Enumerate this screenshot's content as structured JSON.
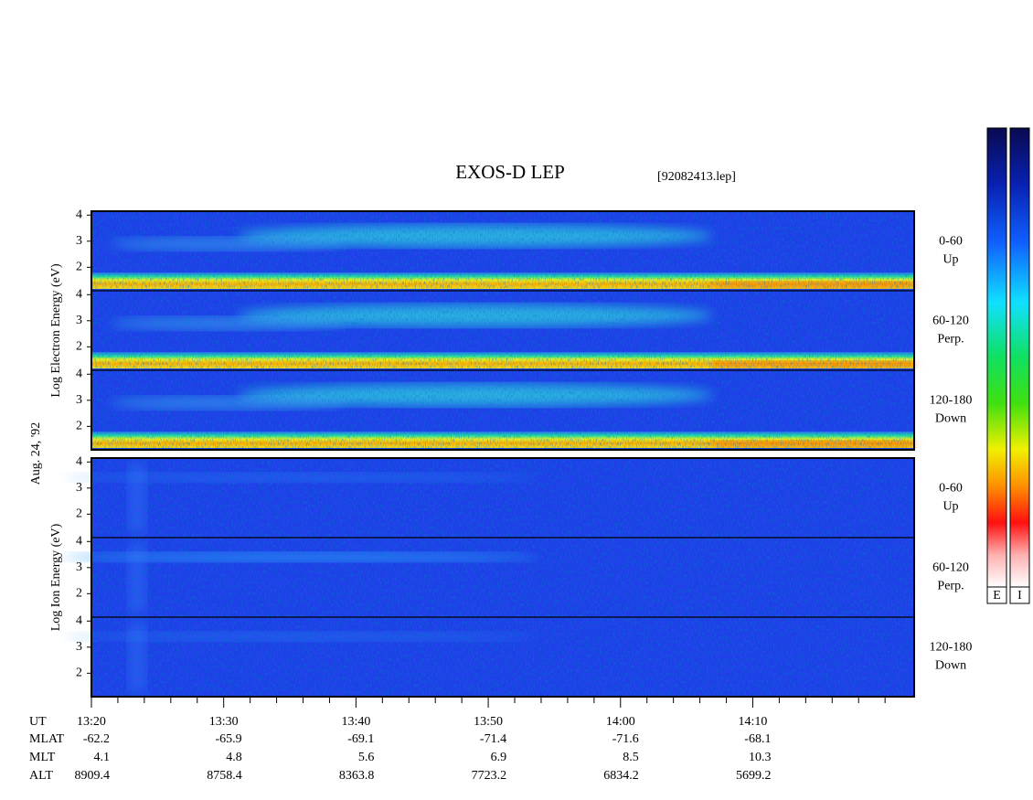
{
  "title": "EXOS-D LEP",
  "file": "[92082413.lep]",
  "date": "Aug. 24, '92",
  "groups": [
    {
      "label": "Log Electron Energy (eV)",
      "kind": "electron"
    },
    {
      "label": "Log Ion Energy (eV)",
      "kind": "ion"
    }
  ],
  "pitch_angles": [
    {
      "range": "0-60",
      "dir": "Up"
    },
    {
      "range": "60-120",
      "dir": "Perp."
    },
    {
      "range": "120-180",
      "dir": "Down"
    }
  ],
  "energy_axis": {
    "ylim": [
      1.1,
      4.15
    ],
    "yticks": [
      2,
      3,
      4
    ]
  },
  "time_axis": {
    "name": "UT",
    "xlim": [
      800,
      862.2
    ],
    "xticks": [
      {
        "value": 800,
        "label": "13:20"
      },
      {
        "value": 810,
        "label": "13:30"
      },
      {
        "value": 820,
        "label": "13:40"
      },
      {
        "value": 830,
        "label": "13:50"
      },
      {
        "value": 840,
        "label": "14:00"
      },
      {
        "value": 850,
        "label": "14:10"
      }
    ],
    "minor_xticks": [
      802,
      804,
      806,
      808,
      812,
      814,
      816,
      818,
      822,
      824,
      826,
      828,
      832,
      834,
      836,
      838,
      842,
      844,
      846,
      848,
      852,
      854,
      856,
      858,
      860
    ]
  },
  "ephemeris": [
    {
      "name": "MLAT",
      "values": [
        -62.2,
        -65.9,
        -69.1,
        -71.4,
        -71.6,
        -68.1
      ]
    },
    {
      "name": "MLT",
      "values": [
        4.1,
        4.8,
        5.6,
        6.9,
        8.5,
        10.3
      ]
    },
    {
      "name": "ALT",
      "values": [
        8909.4,
        8758.4,
        8363.8,
        7723.2,
        6834.2,
        5699.2
      ]
    }
  ],
  "colorbars": [
    "E",
    "I"
  ]
}
